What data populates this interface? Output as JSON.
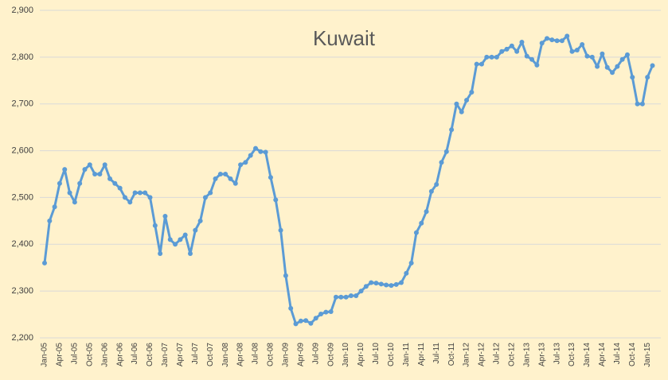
{
  "chart_data": {
    "type": "line",
    "title": "Kuwait",
    "color": "#5b9bd5",
    "grid": true,
    "categories": [
      "Jan-05",
      null,
      null,
      "Apr-05",
      null,
      null,
      "Jul-05",
      null,
      null,
      "Oct-05",
      null,
      null,
      "Jan-06",
      null,
      null,
      "Apr-06",
      null,
      null,
      "Jul-06",
      null,
      null,
      "Oct-06",
      null,
      null,
      "Jan-07",
      null,
      null,
      "Apr-07",
      null,
      null,
      "Jul-07",
      null,
      null,
      "Oct-07",
      null,
      null,
      "Jan-08",
      null,
      null,
      "Apr-08",
      null,
      null,
      "Jul-08",
      null,
      null,
      "Oct-08",
      null,
      null,
      "Jan-09",
      null,
      null,
      "Apr-09",
      null,
      null,
      "Jul-09",
      null,
      null,
      "Oct-09",
      null,
      null,
      "Jan-10",
      null,
      null,
      "Apr-10",
      null,
      null,
      "Jul-10",
      null,
      null,
      "Oct-10",
      null,
      null,
      "Jan-11",
      null,
      null,
      "Apr-11",
      null,
      null,
      "Jul-11",
      null,
      null,
      "Oct-11",
      null,
      null,
      "Jan-12",
      null,
      null,
      "Apr-12",
      null,
      null,
      "Jul-12",
      null,
      null,
      "Oct-12",
      null,
      null,
      "Jan-13",
      null,
      null,
      "Apr-13",
      null,
      null,
      "Jul-13",
      null,
      null,
      "Oct-13",
      null,
      null,
      "Jan-14",
      null,
      null,
      "Apr-14",
      null,
      null,
      "Jul-14",
      null,
      null,
      "Oct-14",
      null,
      null,
      "Jan-15",
      null
    ],
    "values": [
      2360,
      2450,
      2480,
      2530,
      2560,
      2510,
      2490,
      2530,
      2560,
      2570,
      2550,
      2550,
      2570,
      2540,
      2530,
      2520,
      2500,
      2490,
      2510,
      2510,
      2510,
      2500,
      2440,
      2380,
      2460,
      2410,
      2400,
      2410,
      2420,
      2380,
      2430,
      2450,
      2500,
      2510,
      2540,
      2550,
      2550,
      2540,
      2530,
      2570,
      2575,
      2590,
      2605,
      2598,
      2597,
      2543,
      2495,
      2430,
      2333,
      2263,
      2230,
      2236,
      2237,
      2231,
      2242,
      2251,
      2255,
      2256,
      2287,
      2287,
      2287,
      2290,
      2290,
      2300,
      2310,
      2318,
      2317,
      2315,
      2313,
      2312,
      2314,
      2318,
      2338,
      2360,
      2425,
      2445,
      2470,
      2513,
      2528,
      2575,
      2598,
      2645,
      2700,
      2683,
      2708,
      2725,
      2785,
      2785,
      2800,
      2800,
      2800,
      2812,
      2817,
      2824,
      2812,
      2832,
      2802,
      2795,
      2783,
      2830,
      2840,
      2837,
      2835,
      2835,
      2845,
      2812,
      2815,
      2827,
      2802,
      2800,
      2780,
      2807,
      2778,
      2767,
      2780,
      2795,
      2805,
      2757,
      2700,
      2700,
      2757,
      2782
    ],
    "ylim": [
      2200,
      2900
    ],
    "yticks": [
      {
        "value": 2200,
        "label": "2,200"
      },
      {
        "value": 2300,
        "label": "2,300"
      },
      {
        "value": 2400,
        "label": "2,400"
      },
      {
        "value": 2500,
        "label": "2,500"
      },
      {
        "value": 2600,
        "label": "2,600"
      },
      {
        "value": 2700,
        "label": "2,700"
      },
      {
        "value": 2800,
        "label": "2,800"
      },
      {
        "value": 2900,
        "label": "2,900"
      }
    ]
  }
}
